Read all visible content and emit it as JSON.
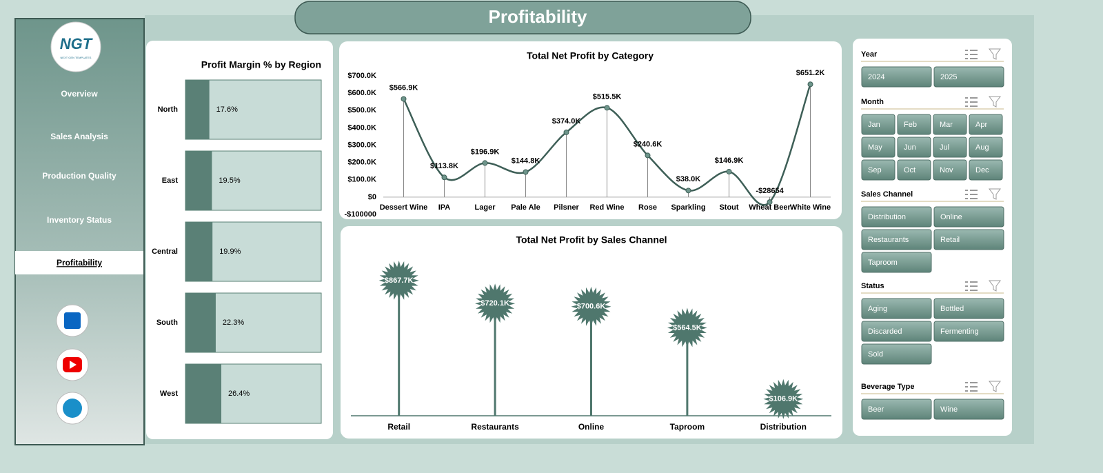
{
  "header": {
    "title": "Profitability",
    "logo": "NGT",
    "logo_sub": "NEXT GEN TEMPLATES"
  },
  "nav": {
    "items": [
      "Overview",
      "Sales Analysis",
      "Production Quality",
      "Inventory Status",
      "Profitability"
    ]
  },
  "chart_data": [
    {
      "type": "hbar",
      "title": "Profit Margin % by Region",
      "categories": [
        "North",
        "East",
        "Central",
        "South",
        "West"
      ],
      "values": [
        17.6,
        19.5,
        19.9,
        22.3,
        26.4
      ],
      "value_labels": [
        "17.6%",
        "19.5%",
        "19.9%",
        "22.3%",
        "26.4%"
      ],
      "color": "#5a8076",
      "xlim": [
        0,
        100
      ]
    },
    {
      "type": "line",
      "title": "Total Net Profit by Category",
      "categories": [
        "Dessert Wine",
        "IPA",
        "Lager",
        "Pale Ale",
        "Pilsner",
        "Red Wine",
        "Rose",
        "Sparkling",
        "Stout",
        "Wheat Beer",
        "White Wine"
      ],
      "values": [
        566900,
        113800,
        196900,
        144800,
        374000,
        515500,
        240600,
        38000,
        146900,
        -28654,
        651200
      ],
      "value_labels": [
        "$566.9K",
        "$113.8K",
        "$196.9K",
        "$144.8K",
        "$374.0K",
        "$515.5K",
        "$240.6K",
        "$38.0K",
        "$146.9K",
        "-$28654",
        "$651.2K"
      ],
      "color": "#3e5f57",
      "ylim": [
        -100000,
        700000
      ],
      "yticks": [
        {
          "value": -100000,
          "label": "-$100000"
        },
        {
          "value": 0,
          "label": "$0"
        },
        {
          "value": 100000,
          "label": "$100.0K"
        },
        {
          "value": 200000,
          "label": "$200.0K"
        },
        {
          "value": 300000,
          "label": "$300.0K"
        },
        {
          "value": 400000,
          "label": "$400.0K"
        },
        {
          "value": 500000,
          "label": "$500.0K"
        },
        {
          "value": 600000,
          "label": "$600.0K"
        },
        {
          "value": 700000,
          "label": "$700.0K"
        }
      ]
    },
    {
      "type": "lollipop",
      "title": "Total Net Profit by Sales Channel",
      "categories": [
        "Retail",
        "Restaurants",
        "Online",
        "Taproom",
        "Distribution"
      ],
      "values": [
        867700,
        720100,
        700600,
        564500,
        106900
      ],
      "value_labels": [
        "$867.7K",
        "$720.1K",
        "$700.6K",
        "$564.5K",
        "$106.9K"
      ],
      "color": "#4f776d",
      "ylim": [
        0,
        1000000
      ]
    }
  ],
  "slicers": [
    {
      "title": "Year",
      "items": [
        "2024",
        "2025"
      ]
    },
    {
      "title": "Month",
      "items": [
        "Jan",
        "Feb",
        "Mar",
        "Apr",
        "May",
        "Jun",
        "Jul",
        "Aug",
        "Sep",
        "Oct",
        "Nov",
        "Dec"
      ]
    },
    {
      "title": "Sales Channel",
      "items": [
        "Distribution",
        "Online",
        "Restaurants",
        "Retail",
        "Taproom"
      ]
    },
    {
      "title": "Status",
      "items": [
        "Aging",
        "Bottled",
        "Discarded",
        "Fermenting",
        "Sold"
      ]
    },
    {
      "title": "Beverage Type",
      "items": [
        "Beer",
        "Wine"
      ]
    }
  ]
}
